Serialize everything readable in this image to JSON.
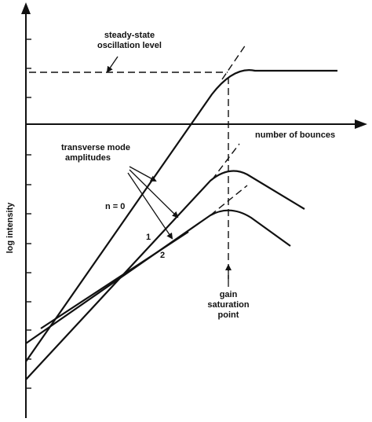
{
  "diagram": {
    "y_axis_label": "log intensity",
    "x_axis_label": "number of bounces",
    "steady_state_label_line1": "steady-state",
    "steady_state_label_line2": "oscillation level",
    "transverse_label_line1": "transverse mode",
    "transverse_label_line2": "amplitudes",
    "mode_labels": [
      "n = 0",
      "1",
      "2"
    ],
    "gain_label_line1": "gain",
    "gain_label_line2": "saturation",
    "gain_label_line3": "point"
  }
}
